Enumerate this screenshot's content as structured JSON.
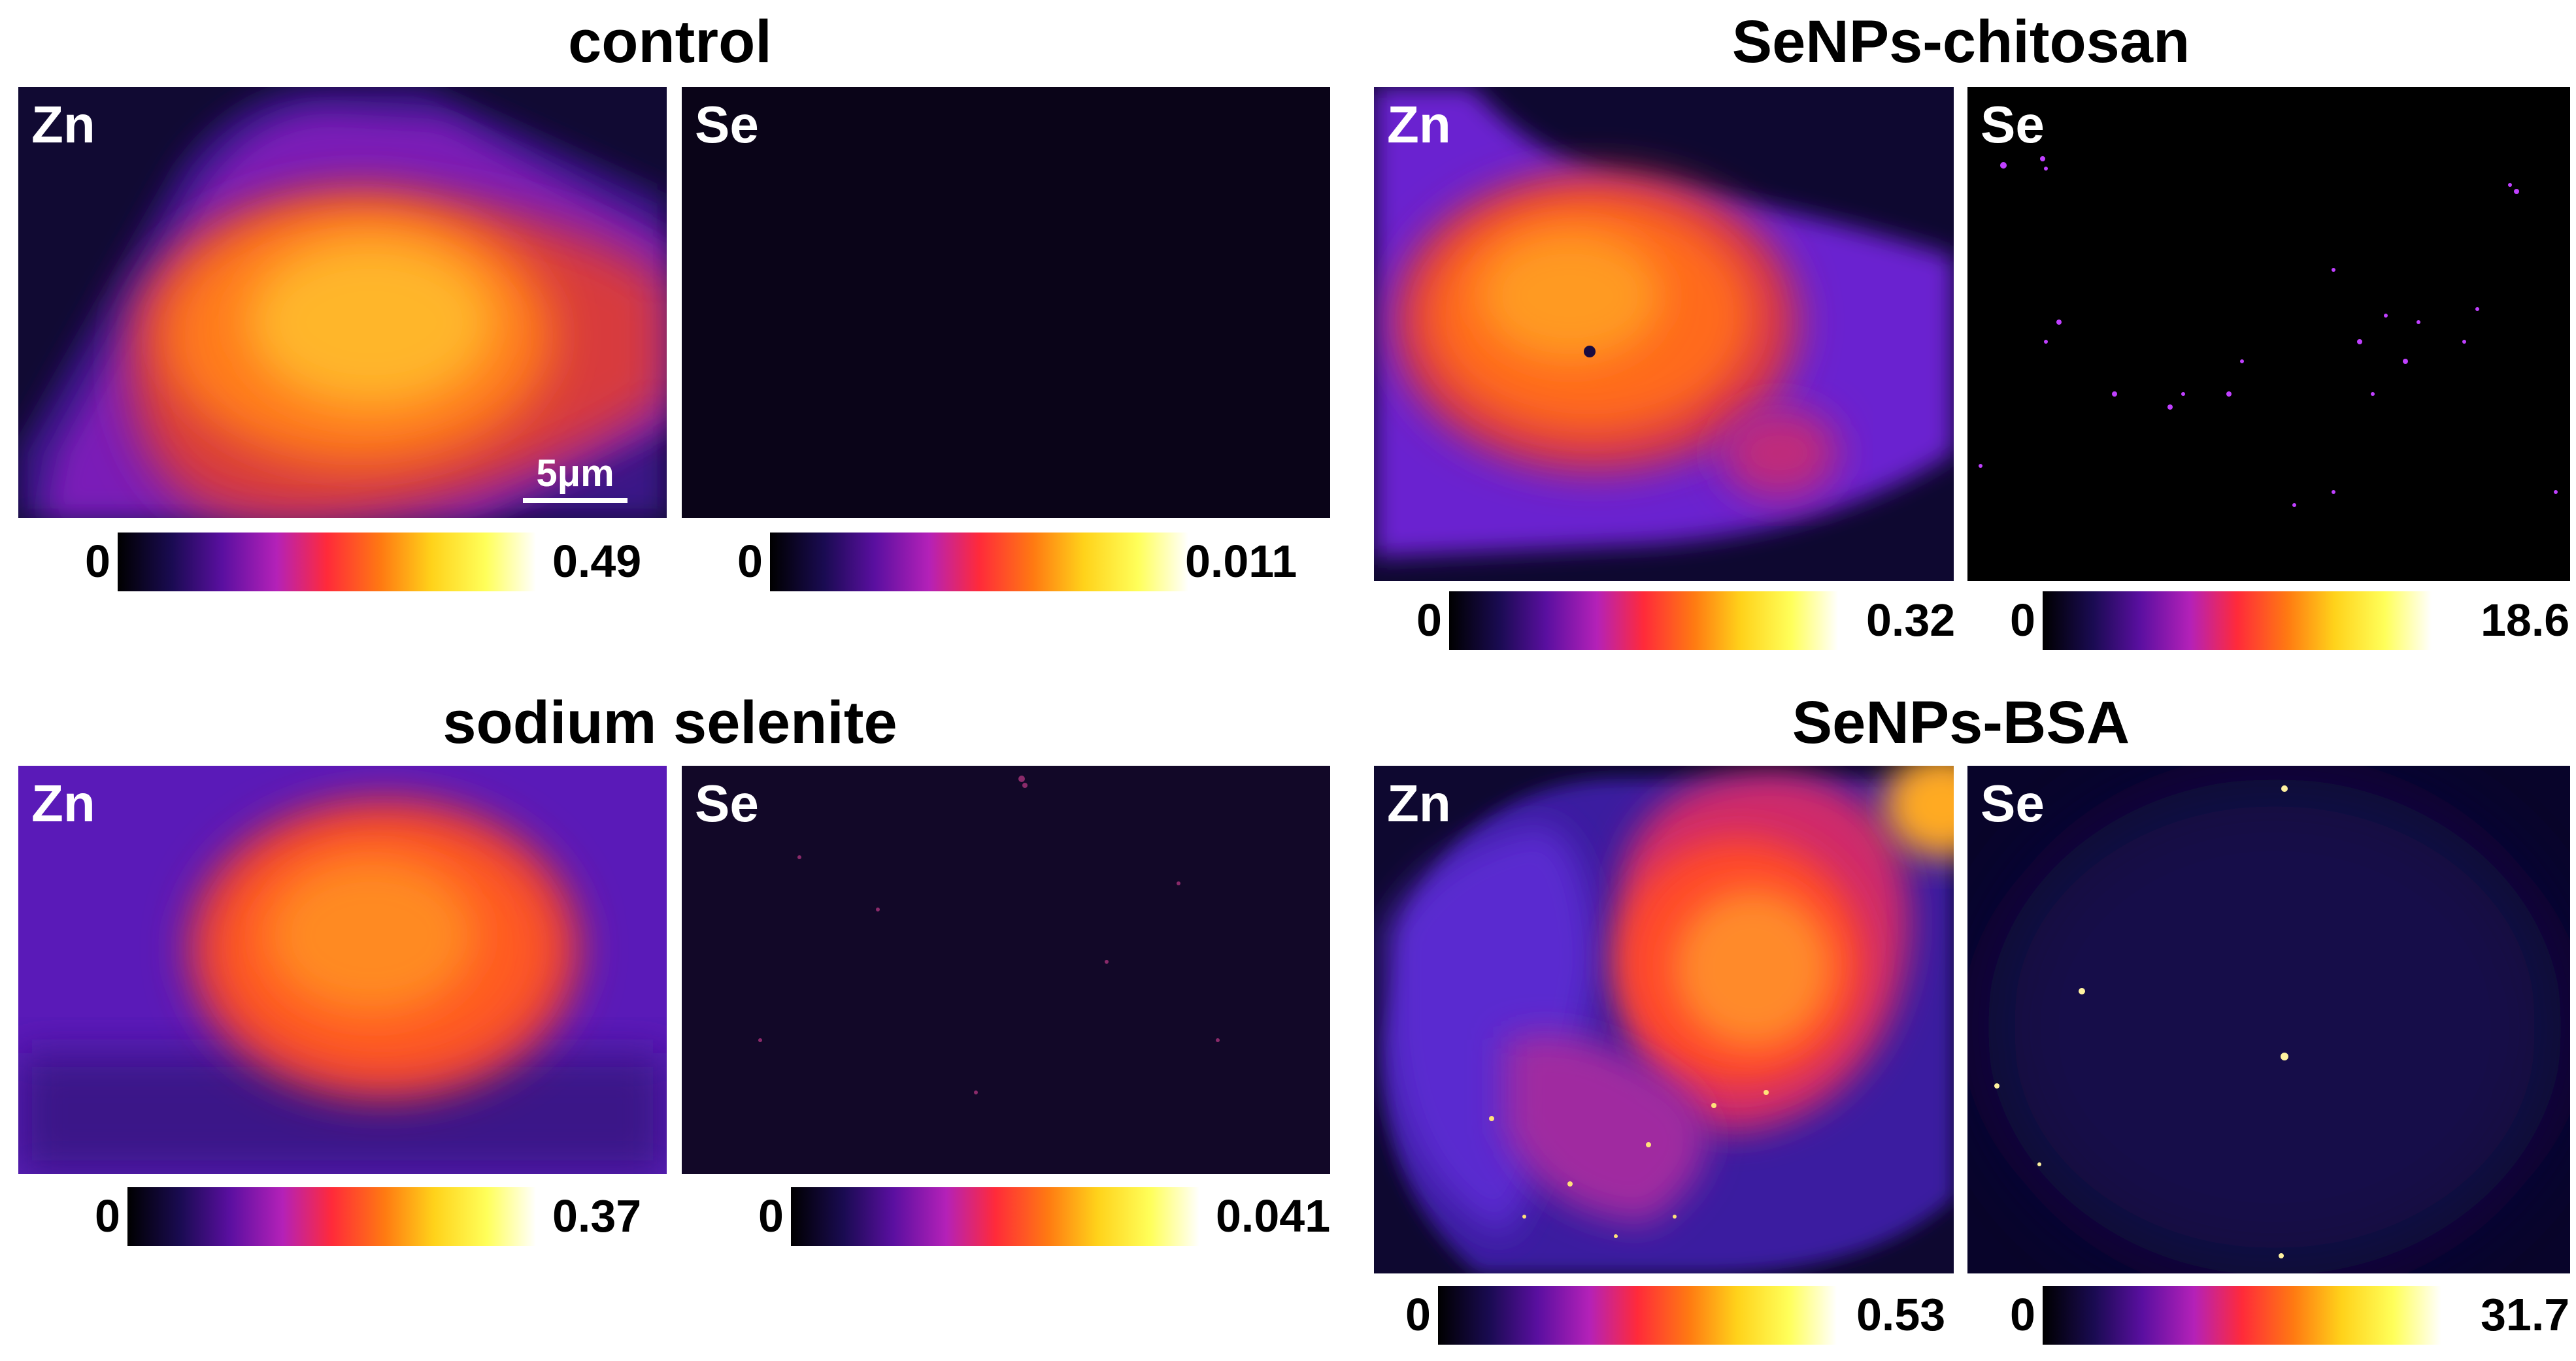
{
  "panels": {
    "control": {
      "title": "control",
      "zn": {
        "label": "Zn",
        "scale_bar": "5μm",
        "cbar_min": "0",
        "cbar_max": "0.49"
      },
      "se": {
        "label": "Se",
        "cbar_min": "0",
        "cbar_max": "0.011"
      }
    },
    "chitosan": {
      "title": "SeNPs-chitosan",
      "zn": {
        "label": "Zn",
        "cbar_min": "0",
        "cbar_max": "0.32"
      },
      "se": {
        "label": "Se",
        "cbar_min": "0",
        "cbar_max": "18.6"
      }
    },
    "selenite": {
      "title": "sodium selenite",
      "zn": {
        "label": "Zn",
        "cbar_min": "0",
        "cbar_max": "0.37"
      },
      "se": {
        "label": "Se",
        "cbar_min": "0",
        "cbar_max": "0.041"
      }
    },
    "bsa": {
      "title": "SeNPs-BSA",
      "zn": {
        "label": "Zn",
        "cbar_min": "0",
        "cbar_max": "0.53"
      },
      "se": {
        "label": "Se",
        "cbar_min": "0",
        "cbar_max": "31.7"
      }
    }
  },
  "colormap": [
    "#000000",
    "#1a0b52",
    "#5a0fa0",
    "#b421b8",
    "#ff2a3a",
    "#ff7a12",
    "#ffd21a",
    "#ffff5a",
    "#ffffff"
  ]
}
